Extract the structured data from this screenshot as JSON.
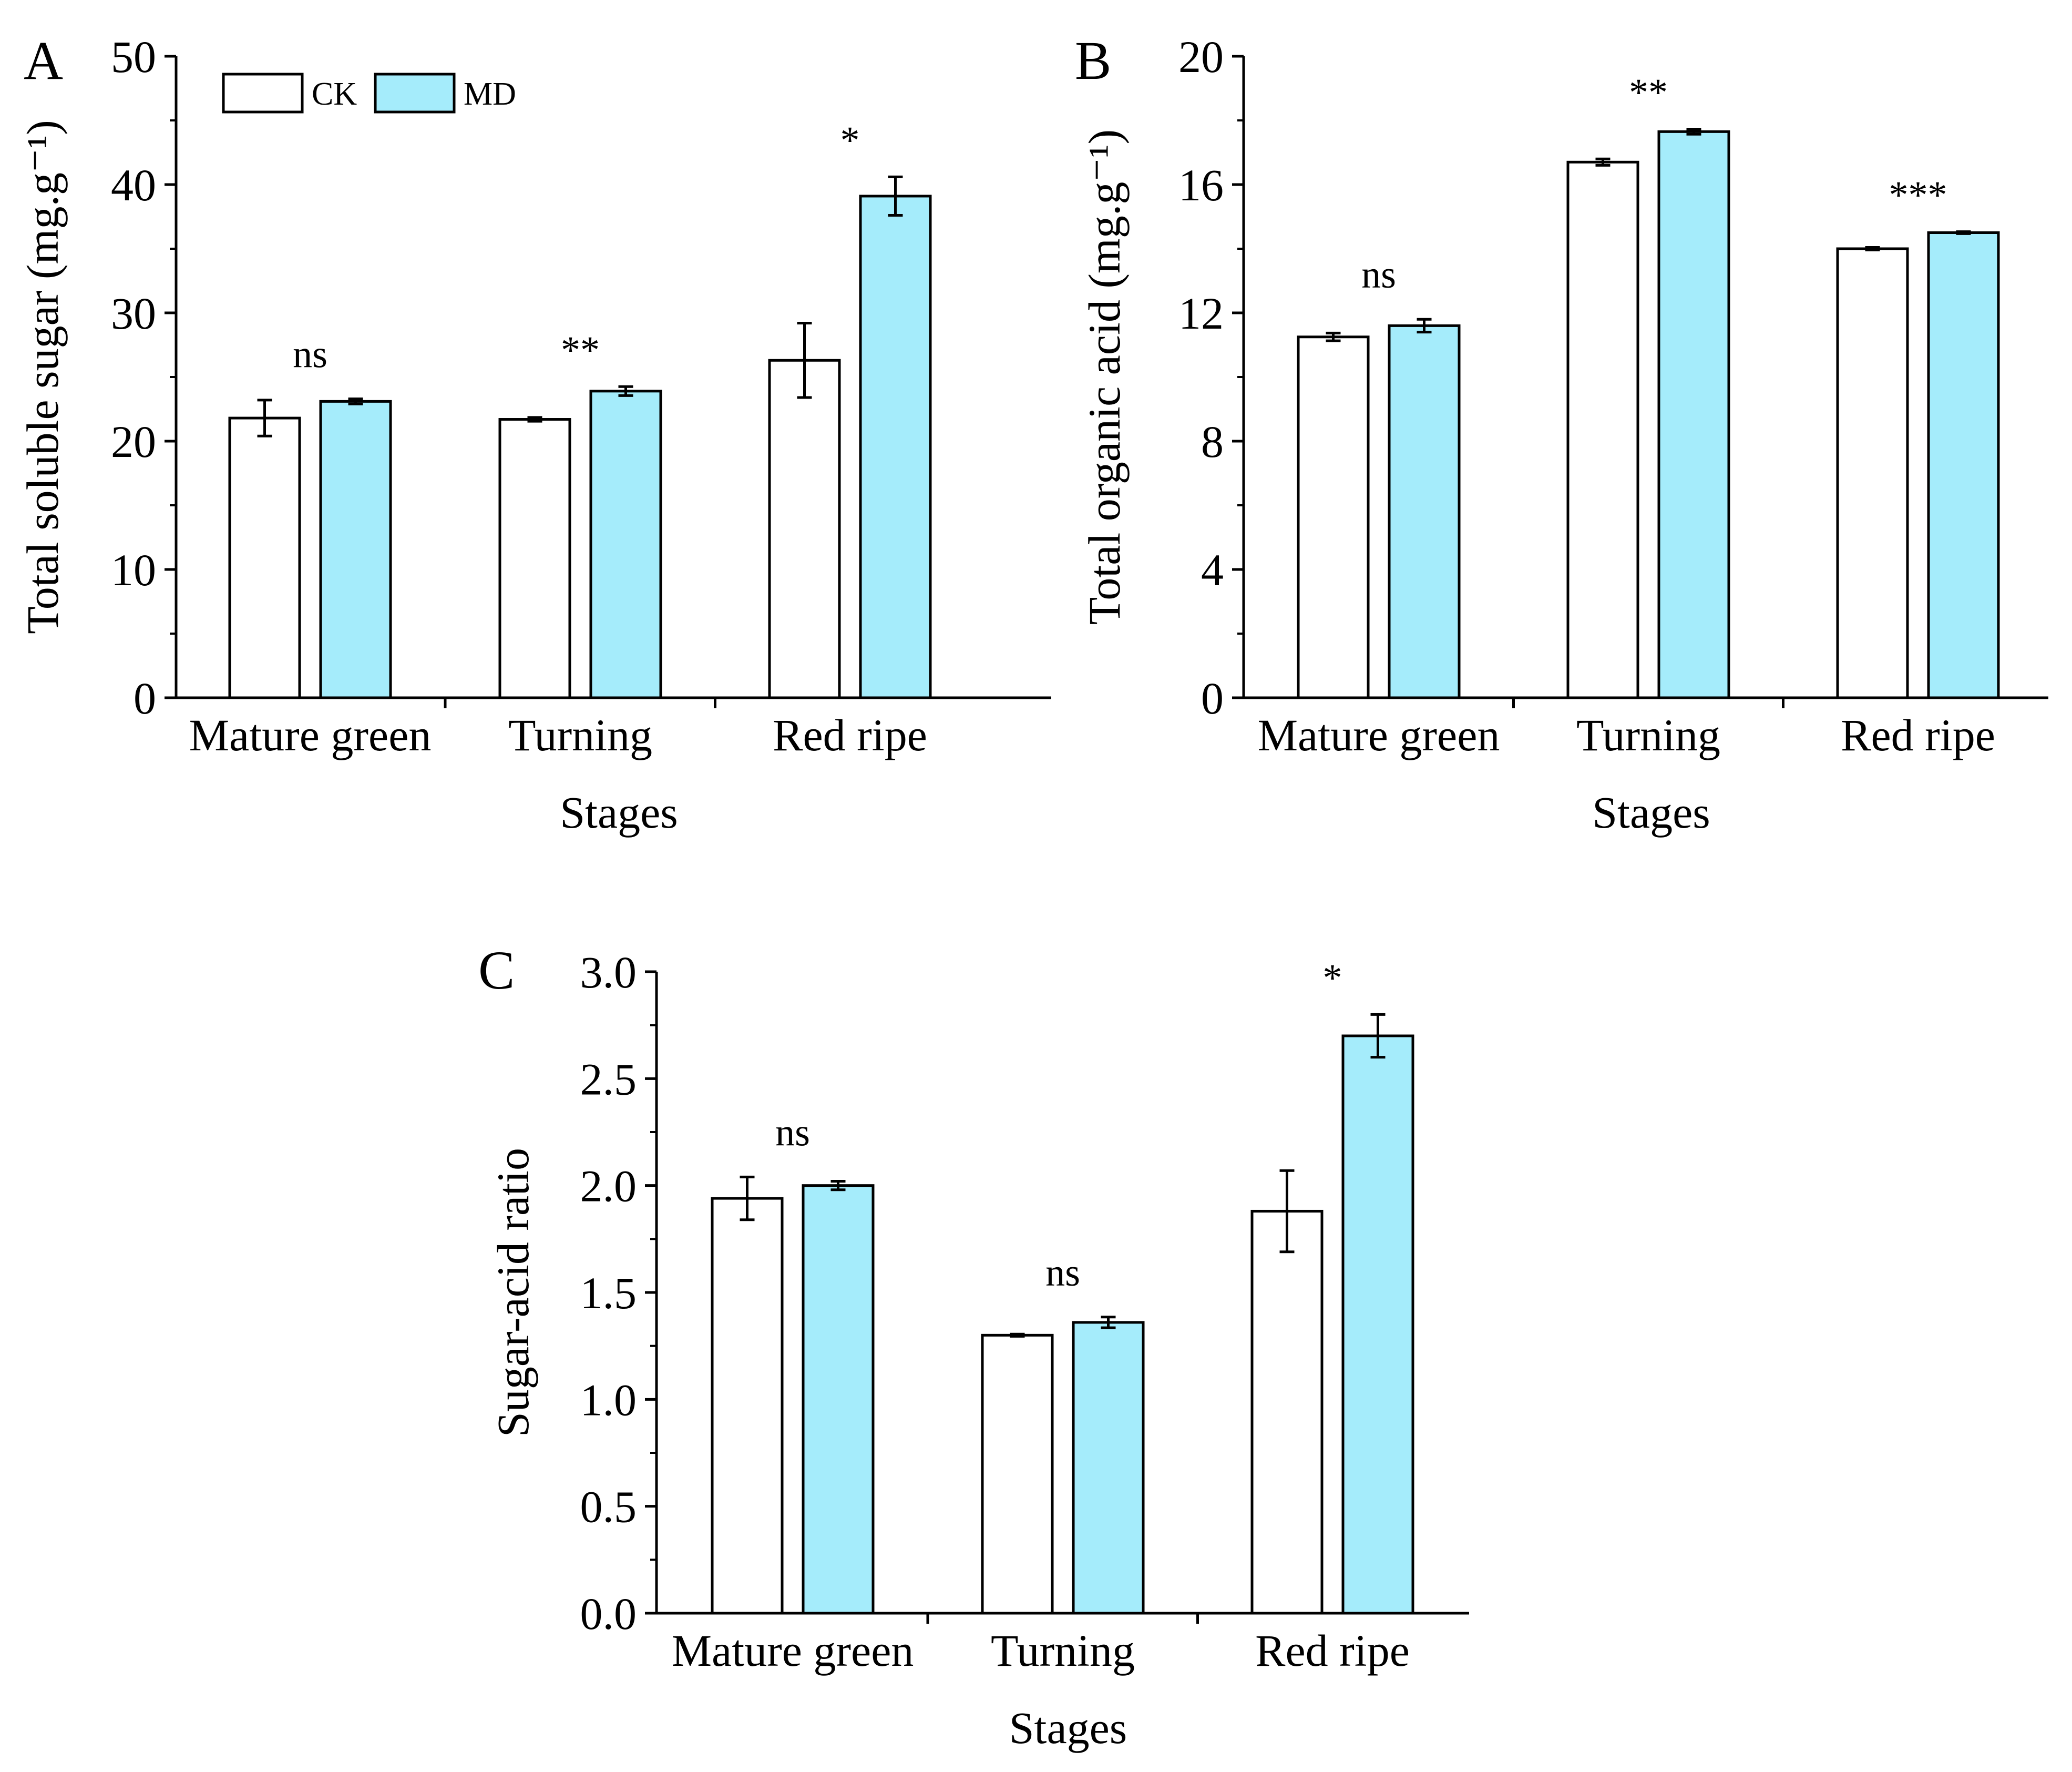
{
  "colors": {
    "CK": "#ffffff",
    "MD": "#a5ecfb",
    "stroke": "#000000"
  },
  "legend": {
    "items": [
      {
        "name": "CK"
      },
      {
        "name": "MD"
      }
    ]
  },
  "chart_data": [
    {
      "panel": "A",
      "type": "bar",
      "xlabel": "Stages",
      "ylabel": "Total soluble sugar  (mg.g⁻¹)",
      "ylim": [
        0,
        50
      ],
      "yticks": [
        "0",
        "10",
        "20",
        "30",
        "40",
        "50"
      ],
      "categories": [
        "Mature green",
        "Turning",
        "Red ripe"
      ],
      "series": [
        {
          "name": "CK",
          "values": [
            21.8,
            21.7,
            26.3
          ],
          "errors": [
            1.4,
            0.15,
            2.9
          ]
        },
        {
          "name": "MD",
          "values": [
            23.1,
            23.9,
            39.1
          ],
          "errors": [
            0.2,
            0.35,
            1.5
          ]
        }
      ],
      "significance": [
        "ns",
        "**",
        "*"
      ]
    },
    {
      "panel": "B",
      "type": "bar",
      "xlabel": "Stages",
      "ylabel": "Total organic acid (mg.g⁻¹)",
      "ylim": [
        0,
        20
      ],
      "yticks": [
        "0",
        "4",
        "8",
        "12",
        "16",
        "20"
      ],
      "categories": [
        "Mature green",
        "Turning",
        "Red ripe"
      ],
      "series": [
        {
          "name": "CK",
          "values": [
            11.25,
            16.7,
            14.0
          ],
          "errors": [
            0.12,
            0.1,
            0.04
          ]
        },
        {
          "name": "MD",
          "values": [
            11.6,
            17.65,
            14.5
          ],
          "errors": [
            0.2,
            0.08,
            0.03
          ]
        }
      ],
      "significance": [
        "ns",
        "**",
        "***"
      ]
    },
    {
      "panel": "C",
      "type": "bar",
      "xlabel": "Stages",
      "ylabel": "Sugar-acid ratio",
      "ylim": [
        0,
        3.0
      ],
      "yticks": [
        "0.0",
        "0.5",
        "1.0",
        "1.5",
        "2.0",
        "2.5",
        "3.0"
      ],
      "categories": [
        "Mature green",
        "Turning",
        "Red ripe"
      ],
      "series": [
        {
          "name": "CK",
          "values": [
            1.94,
            1.3,
            1.88
          ],
          "errors": [
            0.1,
            0.005,
            0.19
          ]
        },
        {
          "name": "MD",
          "values": [
            2.0,
            1.36,
            2.7
          ],
          "errors": [
            0.02,
            0.025,
            0.1
          ]
        }
      ],
      "significance": [
        "ns",
        "ns",
        "*"
      ]
    }
  ]
}
